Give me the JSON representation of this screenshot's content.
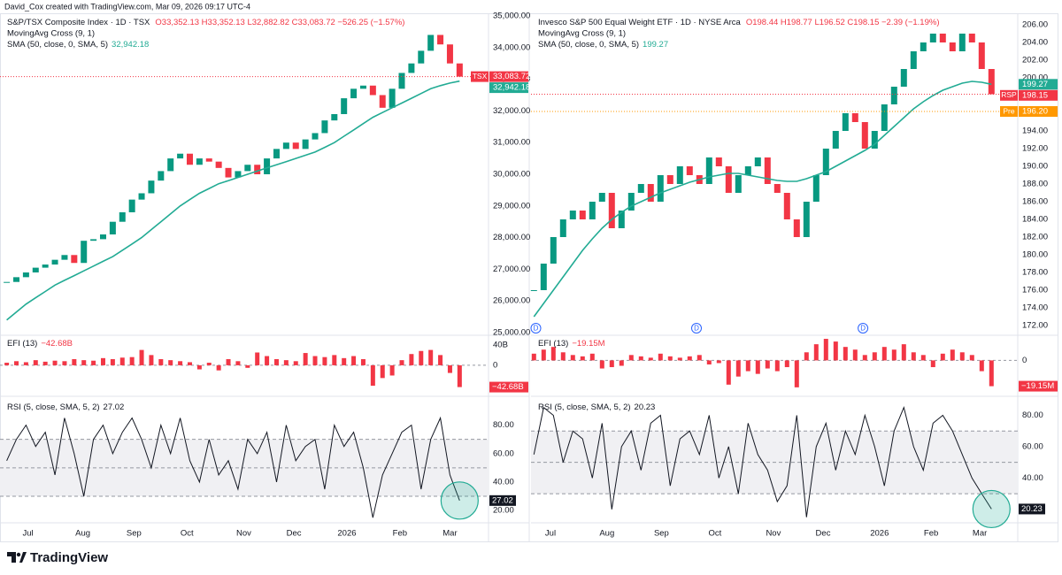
{
  "header": "David_Cox created with TradingView.com, Mar 09, 2026 09:17 UTC-4",
  "footer": "TradingView",
  "chart_data": [
    {
      "type": "candlestick",
      "title": "S&P/TSX Composite Index · 1D · TSX",
      "ohlc": "O33,352.13 H33,352.13 L32,882.82 C33,083.72 −526.25 (−1.57%)",
      "indicator": "MovingAvg Cross (9, 1)",
      "sma_name": "SMA (50, close, 0, SMA, 5)",
      "up_color": "#089981",
      "down_color": "#f23645",
      "xlim": [
        -0.7,
        50
      ],
      "xticks": [
        {
          "value": 2.2,
          "label": "Jul"
        },
        {
          "value": 7.9,
          "label": "Aug"
        },
        {
          "value": 13.2,
          "label": "Sep"
        },
        {
          "value": 18.7,
          "label": "Oct"
        },
        {
          "value": 24.6,
          "label": "Nov"
        },
        {
          "value": 29.8,
          "label": "Dec"
        },
        {
          "value": 35.3,
          "label": "2026"
        },
        {
          "value": 40.8,
          "label": "Feb"
        },
        {
          "value": 46,
          "label": "Mar"
        }
      ],
      "ylim": [
        24944,
        35084
      ],
      "yticks": [
        {
          "value": 25000,
          "label": "25,000.00"
        },
        {
          "value": 26000,
          "label": "26,000.00"
        },
        {
          "value": 27000,
          "label": "27,000.00"
        },
        {
          "value": 28000,
          "label": "28,000.00"
        },
        {
          "value": 29000,
          "label": "29,000.00"
        },
        {
          "value": 30000,
          "label": "30,000.00"
        },
        {
          "value": 31000,
          "label": "31,000.00"
        },
        {
          "value": 32000,
          "label": "32,000.00"
        },
        {
          "value": 33000,
          "label": "33,000.00"
        },
        {
          "value": 34000,
          "label": "34,000.00"
        },
        {
          "value": 35000,
          "label": "35,000.00"
        }
      ],
      "values": [
        26600,
        26750,
        26900,
        27050,
        27150,
        27300,
        27450,
        27200,
        27900,
        27950,
        28100,
        28500,
        28800,
        29200,
        29400,
        29800,
        30100,
        30500,
        30650,
        30300,
        30500,
        30400,
        30200,
        29900,
        30100,
        30300,
        30000,
        30500,
        30800,
        31000,
        30800,
        31100,
        31300,
        31700,
        31900,
        32400,
        32700,
        32800,
        32500,
        32100,
        32700,
        33200,
        33500,
        33900,
        34400,
        34100,
        33500,
        33083.72
      ],
      "sma": {
        "color": "#22ab94",
        "values": [
          25400,
          25650,
          25900,
          26100,
          26300,
          26500,
          26650,
          26800,
          26950,
          27100,
          27250,
          27400,
          27600,
          27800,
          28000,
          28250,
          28500,
          28750,
          29000,
          29200,
          29400,
          29550,
          29700,
          29800,
          29900,
          30000,
          30100,
          30200,
          30300,
          30400,
          30500,
          30600,
          30700,
          30850,
          31000,
          31200,
          31400,
          31600,
          31800,
          31950,
          32100,
          32250,
          32400,
          32550,
          32700,
          32800,
          32880,
          32942.18
        ]
      },
      "price_tags": [
        {
          "tag": "TSX",
          "value": 33083.72,
          "label": "33,083.72",
          "color": "#f23645"
        },
        {
          "value": 32942.18,
          "label": "32,942.18",
          "color": "#22ab94"
        }
      ],
      "efi": {
        "name": "EFI (13)",
        "color": "#f23645",
        "ylim": [
          -59,
          57
        ],
        "yticks": [
          {
            "value": 40,
            "label": "40B"
          },
          0
        ],
        "tag": {
          "value": -42.68,
          "label": "−42.68B"
        },
        "values": [
          5,
          8,
          6,
          10,
          7,
          9,
          8,
          12,
          10,
          9,
          14,
          12,
          15,
          16,
          30,
          20,
          12,
          10,
          8,
          6,
          -8,
          5,
          -10,
          12,
          8,
          -5,
          25,
          18,
          12,
          10,
          8,
          24,
          18,
          16,
          20,
          14,
          18,
          12,
          -40,
          -25,
          -20,
          10,
          22,
          28,
          30,
          20,
          -15,
          -42.68
        ]
      },
      "rsi": {
        "name": "RSI (5, close, SMA, 5, 2)",
        "ylim": [
          12,
          99
        ],
        "yticks": [
          {
            "value": 20,
            "label": "20.00"
          },
          {
            "value": 40,
            "label": "40.00"
          },
          {
            "value": 60,
            "label": "60.00"
          },
          {
            "value": 80,
            "label": "80.00"
          }
        ],
        "levels": [
          30,
          50,
          70
        ],
        "tag": 27.02,
        "values": [
          55,
          70,
          80,
          65,
          75,
          45,
          85,
          60,
          30,
          70,
          80,
          60,
          75,
          85,
          70,
          50,
          80,
          60,
          85,
          55,
          40,
          70,
          45,
          55,
          35,
          70,
          60,
          75,
          40,
          80,
          55,
          65,
          70,
          35,
          80,
          65,
          75,
          50,
          15,
          45,
          60,
          75,
          80,
          35,
          70,
          85,
          45,
          27.02
        ]
      }
    },
    {
      "type": "candlestick",
      "title": "Invesco S&P 500 Equal Weight ETF · 1D · NYSE Arca",
      "ohlc": "O198.44 H198.77 L196.52 C198.15 −2.39 (−1.19%)",
      "indicator": "MovingAvg Cross (9, 1)",
      "sma_name": "SMA (50, close, 0, SMA, 5)",
      "up_color": "#089981",
      "down_color": "#f23645",
      "xlim": [
        -0.3,
        49.7
      ],
      "xticks": [
        {
          "value": 1.7,
          "label": "Jul"
        },
        {
          "value": 7.5,
          "label": "Aug"
        },
        {
          "value": 13.1,
          "label": "Sep"
        },
        {
          "value": 18.6,
          "label": "Oct"
        },
        {
          "value": 24.6,
          "label": "Nov"
        },
        {
          "value": 29.7,
          "label": "Dec"
        },
        {
          "value": 35.5,
          "label": "2026"
        },
        {
          "value": 40.8,
          "label": "Feb"
        },
        {
          "value": 45.8,
          "label": "Mar"
        }
      ],
      "ylim": [
        171,
        207.3
      ],
      "yticks": [
        {
          "value": 172,
          "label": "172.00"
        },
        {
          "value": 174,
          "label": "174.00"
        },
        {
          "value": 176,
          "label": "176.00"
        },
        {
          "value": 178,
          "label": "178.00"
        },
        {
          "value": 180,
          "label": "180.00"
        },
        {
          "value": 182,
          "label": "182.00"
        },
        {
          "value": 184,
          "label": "184.00"
        },
        {
          "value": 186,
          "label": "186.00"
        },
        {
          "value": 188,
          "label": "188.00"
        },
        {
          "value": 190,
          "label": "190.00"
        },
        {
          "value": 192,
          "label": "192.00"
        },
        {
          "value": 194,
          "label": "194.00"
        },
        {
          "value": 196,
          "label": "196.00"
        },
        {
          "value": 198,
          "label": "198.00"
        },
        {
          "value": 200,
          "label": "200.00"
        },
        {
          "value": 202,
          "label": "202.00"
        },
        {
          "value": 204,
          "label": "204.00"
        },
        {
          "value": 206,
          "label": "206.00"
        }
      ],
      "values": [
        176,
        179,
        182,
        184,
        185,
        184,
        186,
        187,
        183,
        185,
        187,
        188,
        186,
        189,
        188,
        190,
        189,
        188,
        191,
        190,
        187,
        189,
        190,
        191,
        188,
        187,
        184,
        182,
        186,
        189,
        192,
        194,
        196,
        195,
        192,
        194,
        197,
        199,
        201,
        203,
        204,
        205,
        204,
        203,
        205,
        204,
        201,
        198.15
      ],
      "sma": {
        "color": "#22ab94",
        "values": [
          173,
          174.5,
          176,
          177.5,
          179,
          180.5,
          181.8,
          183,
          184,
          184.8,
          185.5,
          186,
          186.5,
          187,
          187.4,
          187.8,
          188.2,
          188.5,
          188.8,
          189,
          189.2,
          189.2,
          189,
          188.8,
          188.6,
          188.4,
          188.3,
          188.3,
          188.6,
          189,
          189.4,
          190,
          190.6,
          191.2,
          191.8,
          192.5,
          193.5,
          194.5,
          195.5,
          196.5,
          197.3,
          198,
          198.6,
          199,
          199.4,
          199.6,
          199.5,
          199.27
        ]
      },
      "price_tags": [
        {
          "value": 199.27,
          "label": "199.27",
          "color": "#22ab94"
        },
        {
          "tag": "RSP",
          "value": 198.15,
          "label": "198.15",
          "color": "#f23645"
        },
        {
          "tag": "Pre",
          "value": 196.2,
          "label": "196.20",
          "color": "#ff9800"
        }
      ],
      "dividends": {
        "label": "D",
        "x": [
          0.2,
          16.7,
          33.8
        ]
      },
      "efi": {
        "name": "EFI (13)",
        "color": "#f23645",
        "ylim": [
          -26,
          18
        ],
        "yticks": [
          0
        ],
        "tag": {
          "value": -19.15,
          "label": "−19.15M"
        },
        "values": [
          5,
          8,
          10,
          6,
          4,
          3,
          5,
          -6,
          -5,
          -4,
          4,
          3,
          2,
          5,
          3,
          2,
          3,
          4,
          -3,
          -2,
          -18,
          -12,
          -8,
          -10,
          -6,
          -8,
          -5,
          -20,
          6,
          12,
          16,
          14,
          10,
          8,
          4,
          6,
          10,
          8,
          12,
          6,
          4,
          -5,
          5,
          8,
          6,
          4,
          -8,
          -19.15
        ]
      },
      "rsi": {
        "name": "RSI (5, close, SMA, 5, 2)",
        "ylim": [
          12,
          91
        ],
        "yticks": [
          {
            "value": 40,
            "label": "40.00"
          },
          {
            "value": 60,
            "label": "60.00"
          },
          {
            "value": 80,
            "label": "80.00"
          }
        ],
        "levels": [
          30,
          50,
          70
        ],
        "tag": 20.23,
        "values": [
          55,
          85,
          80,
          50,
          70,
          65,
          40,
          75,
          20,
          60,
          70,
          45,
          75,
          80,
          35,
          65,
          70,
          55,
          80,
          40,
          60,
          30,
          75,
          55,
          45,
          25,
          35,
          80,
          15,
          60,
          75,
          45,
          70,
          55,
          80,
          60,
          35,
          70,
          85,
          60,
          45,
          75,
          80,
          70,
          55,
          40,
          30,
          20.23
        ]
      }
    }
  ]
}
